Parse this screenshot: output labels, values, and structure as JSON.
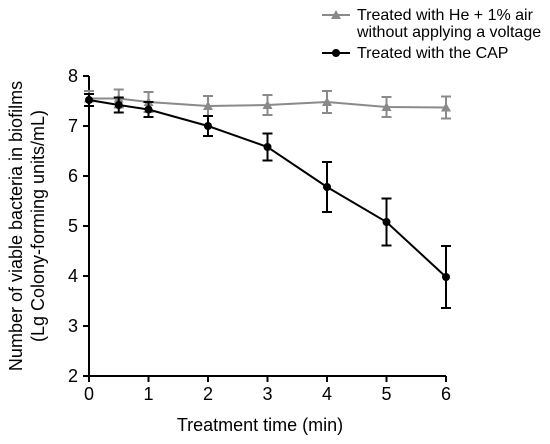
{
  "chart_data": {
    "type": "line",
    "xlabel": "Treatment time (min)",
    "ylabel_line1": "Number of viable bacteria in biofilms",
    "ylabel_line2": "(Lg Colony-forming units/mL)",
    "xlim": [
      0,
      6
    ],
    "ylim": [
      2,
      8
    ],
    "x_ticks": [
      0,
      1,
      2,
      3,
      4,
      5,
      6
    ],
    "y_ticks": [
      2,
      3,
      4,
      5,
      6,
      7,
      8
    ],
    "grid": false,
    "legend_position": "top-right",
    "series": [
      {
        "name": "Treated with He + 1% air without applying a voltage",
        "legend_lines": [
          "Treated with He + 1% air",
          "without applying a voltage"
        ],
        "marker": "triangle",
        "color": "#8a8a8a",
        "x": [
          0,
          0.5,
          1,
          2,
          3,
          4,
          5,
          6
        ],
        "y": [
          7.55,
          7.55,
          7.48,
          7.4,
          7.42,
          7.48,
          7.38,
          7.37
        ],
        "err": [
          0.15,
          0.18,
          0.2,
          0.2,
          0.2,
          0.22,
          0.2,
          0.22
        ]
      },
      {
        "name": "Treated with the CAP",
        "legend_lines": [
          "Treated with the CAP"
        ],
        "marker": "circle",
        "color": "#000000",
        "x": [
          0,
          0.5,
          1,
          2,
          3,
          4,
          5,
          6
        ],
        "y": [
          7.52,
          7.42,
          7.33,
          7.0,
          6.58,
          5.78,
          5.08,
          3.98
        ],
        "err": [
          0.12,
          0.15,
          0.15,
          0.2,
          0.27,
          0.5,
          0.47,
          0.62
        ]
      }
    ]
  }
}
